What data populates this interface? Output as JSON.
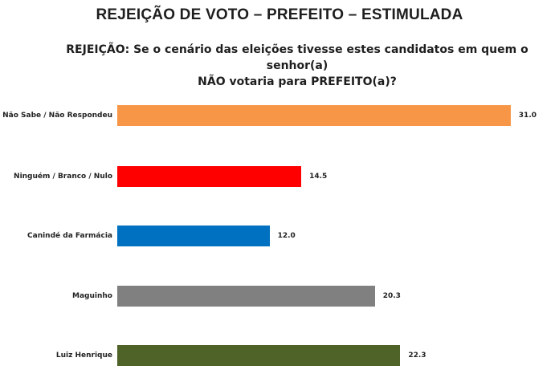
{
  "title": "REJEIÇÃO DE VOTO – PREFEITO – ESTIMULADA",
  "subtitle_line1": "REJEIÇÃO: Se o cenário das eleições tivesse estes candidatos em quem o senhor(a)",
  "subtitle_line2": "NÃO votaria para PREFEITO(a)?",
  "bars": [
    {
      "label": "Não Sabe / Não Respondeu",
      "value": "31.0",
      "color": "#F79646"
    },
    {
      "label": "Ninguém / Branco / Nulo",
      "value": "14.5",
      "color": "#FF0000"
    },
    {
      "label": "Canindé da Farmácia",
      "value": "12.0",
      "color": "#0070C0"
    },
    {
      "label": "Maguinho",
      "value": "20.3",
      "color": "#808080"
    },
    {
      "label": "Luiz Henrique",
      "value": "22.3",
      "color": "#4F6228"
    }
  ],
  "chart_data": {
    "type": "bar",
    "orientation": "horizontal",
    "title": "REJEIÇÃO DE VOTO – PREFEITO – ESTIMULADA",
    "subtitle": "REJEIÇÃO: Se o cenário das eleições tivesse estes candidatos em quem o senhor(a) NÃO votaria para PREFEITO(a)?",
    "categories": [
      "Não Sabe / Não Respondeu",
      "Ninguém / Branco / Nulo",
      "Canindé da Farmácia",
      "Maguinho",
      "Luiz Henrique"
    ],
    "values": [
      31.0,
      14.5,
      12.0,
      20.3,
      22.3
    ],
    "colors": [
      "#F79646",
      "#FF0000",
      "#0070C0",
      "#808080",
      "#4F6228"
    ],
    "xlabel": "",
    "ylabel": "",
    "grid": false,
    "legend": "none",
    "data_labels": true
  }
}
